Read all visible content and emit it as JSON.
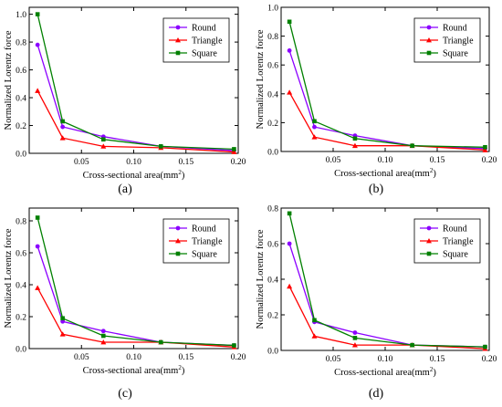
{
  "figure": {
    "captions": [
      "(a)",
      "(b)",
      "(c)",
      "(d)"
    ]
  },
  "chart_data": [
    {
      "type": "line",
      "panel": "(a)",
      "ylabel": "Normalized Lorentz force",
      "xlabel": "Cross-sectional area(mm²)",
      "xlim": [
        0.0,
        0.2
      ],
      "ylim": [
        0.0,
        1.05
      ],
      "x_ticks": [
        0.05,
        0.1,
        0.15,
        0.2
      ],
      "x_tick_labels": [
        "0.05",
        "0.10",
        "0.15",
        "0.20"
      ],
      "y_ticks": [
        0.0,
        0.2,
        0.4,
        0.6,
        0.8,
        1.0
      ],
      "y_tick_labels": [
        "0.0",
        "0.2",
        "0.4",
        "0.6",
        "0.8",
        "1.0"
      ],
      "legend_position": "top-right",
      "grid": false,
      "x": [
        0.008,
        0.032,
        0.071,
        0.126,
        0.196
      ],
      "series": [
        {
          "name": "Round",
          "color": "#8B00FF",
          "marker": "circle",
          "values": [
            0.78,
            0.19,
            0.12,
            0.05,
            0.02
          ]
        },
        {
          "name": "Triangle",
          "color": "#FF0000",
          "marker": "triangle",
          "values": [
            0.45,
            0.11,
            0.05,
            0.04,
            0.01
          ]
        },
        {
          "name": "Square",
          "color": "#008000",
          "marker": "square",
          "values": [
            1.0,
            0.23,
            0.1,
            0.05,
            0.03
          ]
        }
      ]
    },
    {
      "type": "line",
      "panel": "(b)",
      "ylabel": "Normalized Lorentz force",
      "xlabel": "Cross-sectional area(mm²)",
      "xlim": [
        0.0,
        0.2
      ],
      "ylim": [
        0.0,
        1.0
      ],
      "x_ticks": [
        0.05,
        0.1,
        0.15,
        0.2
      ],
      "x_tick_labels": [
        "0.05",
        "0.10",
        "0.15",
        "0.20"
      ],
      "y_ticks": [
        0.0,
        0.2,
        0.4,
        0.6,
        0.8,
        1.0
      ],
      "y_tick_labels": [
        "0.0",
        "0.2",
        "0.4",
        "0.6",
        "0.8",
        "1.0"
      ],
      "legend_position": "top-right",
      "grid": false,
      "x": [
        0.008,
        0.032,
        0.071,
        0.126,
        0.196
      ],
      "series": [
        {
          "name": "Round",
          "color": "#8B00FF",
          "marker": "circle",
          "values": [
            0.7,
            0.17,
            0.11,
            0.04,
            0.02
          ]
        },
        {
          "name": "Triangle",
          "color": "#FF0000",
          "marker": "triangle",
          "values": [
            0.41,
            0.1,
            0.04,
            0.04,
            0.01
          ]
        },
        {
          "name": "Square",
          "color": "#008000",
          "marker": "square",
          "values": [
            0.9,
            0.21,
            0.09,
            0.04,
            0.03
          ]
        }
      ]
    },
    {
      "type": "line",
      "panel": "(c)",
      "ylabel": "Normalized Lorentz force",
      "xlabel": "Cross-sectional area(mm²)",
      "xlim": [
        0.0,
        0.2
      ],
      "ylim": [
        0.0,
        0.88
      ],
      "x_ticks": [
        0.05,
        0.1,
        0.15,
        0.2
      ],
      "x_tick_labels": [
        "0.05",
        "0.10",
        "0.15",
        "0.20"
      ],
      "y_ticks": [
        0.0,
        0.2,
        0.4,
        0.6,
        0.8
      ],
      "y_tick_labels": [
        "0.0",
        "0.2",
        "0.4",
        "0.6",
        "0.8"
      ],
      "legend_position": "top-right",
      "grid": false,
      "x": [
        0.008,
        0.032,
        0.071,
        0.126,
        0.196
      ],
      "series": [
        {
          "name": "Round",
          "color": "#8B00FF",
          "marker": "circle",
          "values": [
            0.64,
            0.17,
            0.11,
            0.04,
            0.02
          ]
        },
        {
          "name": "Triangle",
          "color": "#FF0000",
          "marker": "triangle",
          "values": [
            0.38,
            0.09,
            0.04,
            0.04,
            0.01
          ]
        },
        {
          "name": "Square",
          "color": "#008000",
          "marker": "square",
          "values": [
            0.82,
            0.19,
            0.08,
            0.04,
            0.02
          ]
        }
      ]
    },
    {
      "type": "line",
      "panel": "(d)",
      "ylabel": "Normalized Lorentz force",
      "xlabel": "Cross-sectional area(mm²)",
      "xlim": [
        0.0,
        0.2
      ],
      "ylim": [
        0.0,
        0.8
      ],
      "x_ticks": [
        0.05,
        0.1,
        0.15,
        0.2
      ],
      "x_tick_labels": [
        "0.05",
        "0.10",
        "0.15",
        "0.20"
      ],
      "y_ticks": [
        0.0,
        0.2,
        0.4,
        0.6,
        0.8
      ],
      "y_tick_labels": [
        "0.0",
        "0.2",
        "0.4",
        "0.6",
        "0.8"
      ],
      "legend_position": "top-right",
      "grid": false,
      "x": [
        0.008,
        0.032,
        0.071,
        0.126,
        0.196
      ],
      "series": [
        {
          "name": "Round",
          "color": "#8B00FF",
          "marker": "circle",
          "values": [
            0.6,
            0.16,
            0.1,
            0.03,
            0.02
          ]
        },
        {
          "name": "Triangle",
          "color": "#FF0000",
          "marker": "triangle",
          "values": [
            0.36,
            0.08,
            0.03,
            0.03,
            0.01
          ]
        },
        {
          "name": "Square",
          "color": "#008000",
          "marker": "square",
          "values": [
            0.77,
            0.17,
            0.07,
            0.03,
            0.02
          ]
        }
      ]
    }
  ]
}
